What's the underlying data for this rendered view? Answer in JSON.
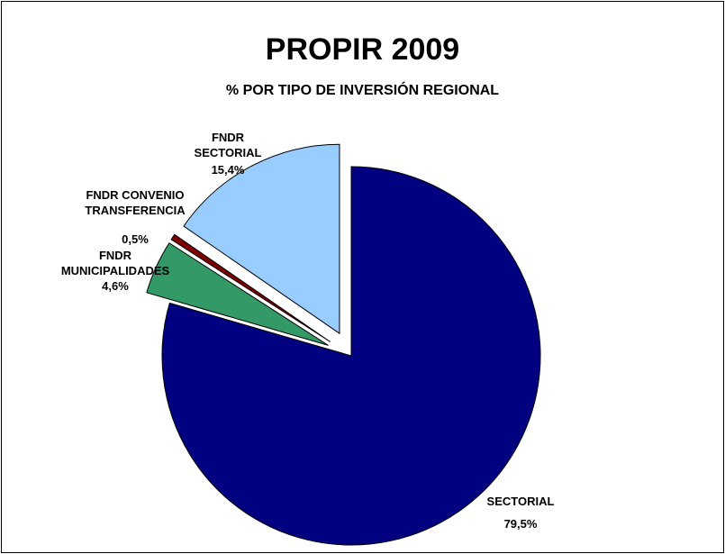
{
  "chart_data": {
    "type": "pie",
    "title": "PROPIR 2009",
    "subtitle": "% POR TIPO DE INVERSIÓN REGIONAL",
    "categories": [
      "SECTORIAL",
      "FNDR MUNICIPALIDADES",
      "FNDR CONVENIO TRANSFERENCIA",
      "FNDR SECTORIAL"
    ],
    "values": [
      79.5,
      4.6,
      0.5,
      15.4
    ],
    "value_labels": [
      "79,5%",
      "4,6%",
      "0,5%",
      "15,4%"
    ],
    "colors": [
      "#000080",
      "#339966",
      "#800000",
      "#99ccff"
    ]
  }
}
